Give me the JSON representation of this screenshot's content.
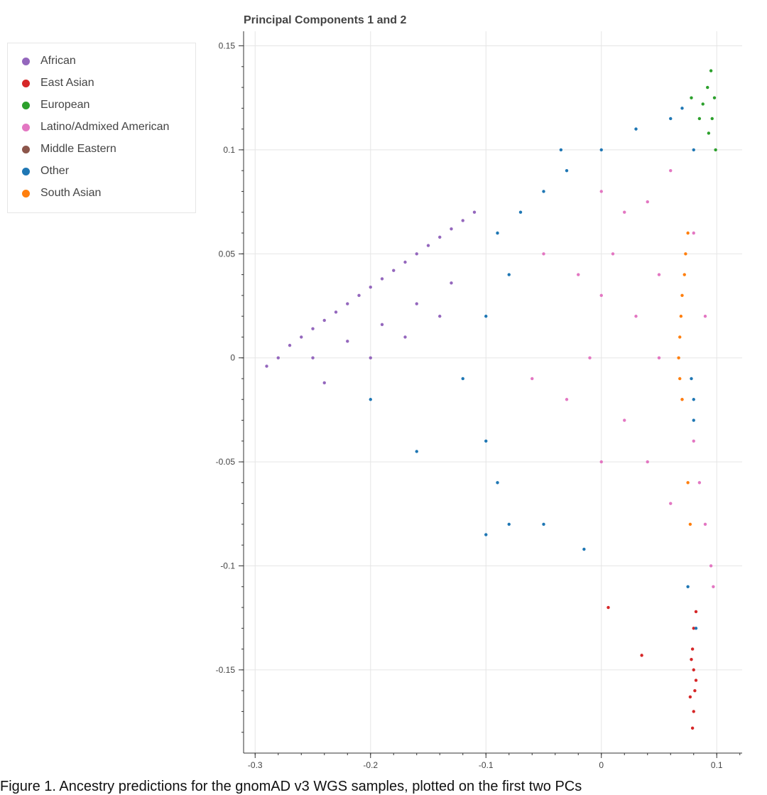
{
  "chart_data": {
    "type": "scatter",
    "title": "Principal Components 1 and 2",
    "xlabel": "",
    "ylabel": "",
    "xlim": [
      -0.31,
      0.122
    ],
    "ylim": [
      -0.19,
      0.157
    ],
    "grid": true,
    "legend_position": "top-left, outside plot",
    "x_ticks": [
      -0.3,
      -0.2,
      -0.1,
      0,
      0.1
    ],
    "x_tick_labels": [
      "-0.3",
      "-0.2",
      "-0.1",
      "0",
      "0.1"
    ],
    "y_ticks": [
      0.15,
      0.1,
      0.05,
      0,
      -0.05,
      -0.1,
      -0.15
    ],
    "y_tick_labels": [
      "0.15",
      "0.1",
      "0.05",
      "0",
      "-0.05",
      "-0.1",
      "-0.15"
    ],
    "series": [
      {
        "name": "African",
        "color": "#9467bd",
        "points": [
          [
            -0.29,
            -0.004
          ],
          [
            -0.28,
            0.0
          ],
          [
            -0.27,
            0.006
          ],
          [
            -0.26,
            0.01
          ],
          [
            -0.25,
            0.014
          ],
          [
            -0.24,
            0.018
          ],
          [
            -0.23,
            0.022
          ],
          [
            -0.22,
            0.026
          ],
          [
            -0.21,
            0.03
          ],
          [
            -0.2,
            0.034
          ],
          [
            -0.19,
            0.038
          ],
          [
            -0.18,
            0.042
          ],
          [
            -0.17,
            0.046
          ],
          [
            -0.16,
            0.05
          ],
          [
            -0.15,
            0.054
          ],
          [
            -0.14,
            0.058
          ],
          [
            -0.13,
            0.062
          ],
          [
            -0.12,
            0.066
          ],
          [
            -0.11,
            0.07
          ],
          [
            -0.25,
            0.0
          ],
          [
            -0.22,
            0.008
          ],
          [
            -0.19,
            0.016
          ],
          [
            -0.16,
            0.026
          ],
          [
            -0.13,
            0.036
          ],
          [
            -0.24,
            -0.012
          ],
          [
            -0.2,
            0.0
          ],
          [
            -0.17,
            0.01
          ],
          [
            -0.14,
            0.02
          ]
        ]
      },
      {
        "name": "East Asian",
        "color": "#d62728",
        "points": [
          [
            0.08,
            -0.13
          ],
          [
            0.079,
            -0.14
          ],
          [
            0.08,
            -0.15
          ],
          [
            0.081,
            -0.16
          ],
          [
            0.08,
            -0.17
          ],
          [
            0.079,
            -0.178
          ],
          [
            0.078,
            -0.145
          ],
          [
            0.082,
            -0.155
          ],
          [
            0.077,
            -0.163
          ],
          [
            0.006,
            -0.12
          ],
          [
            0.035,
            -0.143
          ],
          [
            0.082,
            -0.122
          ]
        ]
      },
      {
        "name": "European",
        "color": "#2ca02c",
        "points": [
          [
            0.095,
            0.138
          ],
          [
            0.092,
            0.13
          ],
          [
            0.098,
            0.125
          ],
          [
            0.088,
            0.122
          ],
          [
            0.096,
            0.115
          ],
          [
            0.085,
            0.115
          ],
          [
            0.093,
            0.108
          ],
          [
            0.078,
            0.125
          ],
          [
            0.099,
            0.1
          ]
        ]
      },
      {
        "name": "Latino/Admixed American",
        "color": "#e377c2",
        "points": [
          [
            0.0,
            0.08
          ],
          [
            0.02,
            0.07
          ],
          [
            0.04,
            0.075
          ],
          [
            0.06,
            0.09
          ],
          [
            -0.05,
            0.05
          ],
          [
            -0.02,
            0.04
          ],
          [
            0.0,
            0.03
          ],
          [
            0.03,
            0.02
          ],
          [
            0.05,
            0.0
          ],
          [
            0.07,
            -0.02
          ],
          [
            0.08,
            -0.04
          ],
          [
            0.085,
            -0.06
          ],
          [
            0.09,
            -0.08
          ],
          [
            0.095,
            -0.1
          ],
          [
            0.097,
            -0.11
          ],
          [
            -0.01,
            0.0
          ],
          [
            -0.03,
            -0.02
          ],
          [
            0.02,
            -0.03
          ],
          [
            0.04,
            -0.05
          ],
          [
            0.06,
            -0.07
          ],
          [
            0.0,
            -0.05
          ],
          [
            -0.06,
            -0.01
          ],
          [
            0.01,
            0.05
          ],
          [
            0.09,
            0.02
          ],
          [
            0.08,
            0.06
          ],
          [
            0.05,
            0.04
          ]
        ]
      },
      {
        "name": "Middle Eastern",
        "color": "#8c564b",
        "points": []
      },
      {
        "name": "Other",
        "color": "#1f77b4",
        "points": [
          [
            -0.09,
            0.06
          ],
          [
            -0.07,
            0.07
          ],
          [
            -0.05,
            0.08
          ],
          [
            -0.03,
            0.09
          ],
          [
            0.0,
            0.1
          ],
          [
            0.03,
            0.11
          ],
          [
            0.06,
            0.115
          ],
          [
            0.07,
            0.12
          ],
          [
            0.08,
            0.1
          ],
          [
            -0.08,
            0.04
          ],
          [
            -0.1,
            0.02
          ],
          [
            -0.12,
            -0.01
          ],
          [
            -0.1,
            -0.04
          ],
          [
            -0.09,
            -0.06
          ],
          [
            -0.08,
            -0.08
          ],
          [
            -0.1,
            -0.085
          ],
          [
            -0.05,
            -0.08
          ],
          [
            -0.015,
            -0.092
          ],
          [
            0.08,
            -0.02
          ],
          [
            0.078,
            -0.01
          ],
          [
            0.08,
            -0.03
          ],
          [
            0.075,
            -0.11
          ],
          [
            0.082,
            -0.13
          ],
          [
            -0.035,
            0.1
          ],
          [
            -0.16,
            -0.045
          ],
          [
            -0.2,
            -0.02
          ]
        ]
      },
      {
        "name": "South Asian",
        "color": "#ff7f0e",
        "points": [
          [
            0.075,
            0.06
          ],
          [
            0.073,
            0.05
          ],
          [
            0.072,
            0.04
          ],
          [
            0.07,
            0.03
          ],
          [
            0.069,
            0.02
          ],
          [
            0.068,
            0.01
          ],
          [
            0.067,
            0.0
          ],
          [
            0.068,
            -0.01
          ],
          [
            0.07,
            -0.02
          ],
          [
            0.075,
            -0.06
          ],
          [
            0.077,
            -0.08
          ]
        ]
      }
    ]
  },
  "caption": "Figure 1. Ancestry predictions for the gnomAD v3 WGS samples, plotted on the first two PCs"
}
